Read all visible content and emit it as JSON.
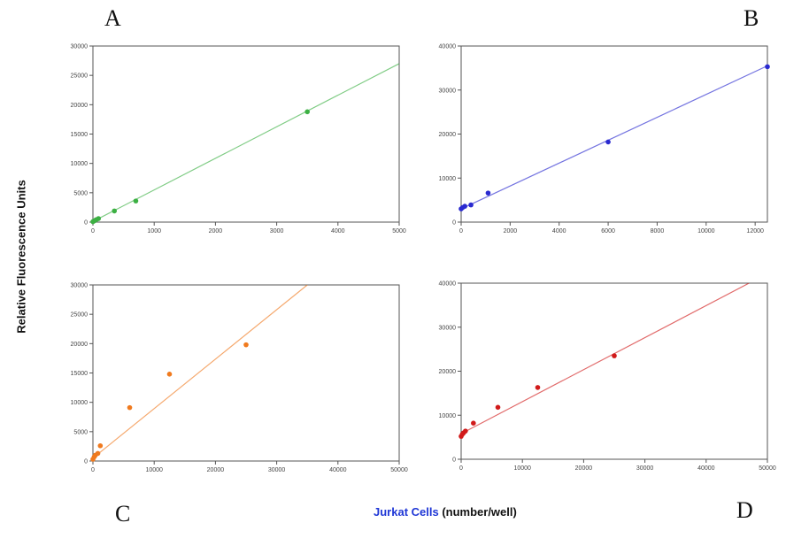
{
  "letters": {
    "a": "A",
    "b": "B",
    "c": "C",
    "d": "D"
  },
  "ylabel": "Relative Fluorescence Units",
  "xlabel": {
    "blue": "Jurkat Cells",
    "rest": " (number/well)"
  },
  "chart_data": [
    {
      "type": "scatter",
      "panel": "A",
      "color": "#3cb043",
      "xlim": [
        0,
        5000
      ],
      "ylim": [
        0,
        30000
      ],
      "xticks": [
        0,
        1000,
        2000,
        3000,
        4000,
        5000
      ],
      "yticks": [
        0,
        5000,
        10000,
        15000,
        20000,
        25000,
        30000
      ],
      "points": [
        [
          0,
          80
        ],
        [
          20,
          200
        ],
        [
          50,
          400
        ],
        [
          90,
          600
        ],
        [
          350,
          1900
        ],
        [
          700,
          3600
        ],
        [
          3500,
          18800
        ]
      ],
      "fit": [
        [
          0,
          100
        ],
        [
          5000,
          27000
        ]
      ]
    },
    {
      "type": "scatter",
      "panel": "B",
      "color": "#2a2ad0",
      "xlim": [
        0,
        12500
      ],
      "ylim": [
        0,
        40000
      ],
      "xticks": [
        0,
        2000,
        4000,
        6000,
        8000,
        10000,
        12000
      ],
      "yticks": [
        0,
        10000,
        20000,
        30000,
        40000
      ],
      "points": [
        [
          0,
          3000
        ],
        [
          60,
          3300
        ],
        [
          150,
          3600
        ],
        [
          400,
          3900
        ],
        [
          1100,
          6600
        ],
        [
          6000,
          18200
        ],
        [
          12500,
          35300
        ]
      ],
      "fit": [
        [
          0,
          3000
        ],
        [
          12500,
          35500
        ]
      ]
    },
    {
      "type": "scatter",
      "panel": "C",
      "color": "#f07a1e",
      "xlim": [
        0,
        50000
      ],
      "ylim": [
        0,
        30000
      ],
      "xticks": [
        0,
        10000,
        20000,
        30000,
        40000,
        50000
      ],
      "yticks": [
        0,
        5000,
        10000,
        15000,
        20000,
        25000,
        30000
      ],
      "points": [
        [
          0,
          300
        ],
        [
          200,
          700
        ],
        [
          400,
          1000
        ],
        [
          800,
          1300
        ],
        [
          1200,
          2600
        ],
        [
          6000,
          9100
        ],
        [
          12500,
          14800
        ],
        [
          25000,
          19800
        ]
      ],
      "fit": [
        [
          0,
          500
        ],
        [
          35000,
          30000
        ]
      ]
    },
    {
      "type": "scatter",
      "panel": "D",
      "color": "#d11a1a",
      "xlim": [
        0,
        50000
      ],
      "ylim": [
        0,
        40000
      ],
      "xticks": [
        0,
        10000,
        20000,
        30000,
        40000,
        50000
      ],
      "yticks": [
        0,
        10000,
        20000,
        30000,
        40000
      ],
      "points": [
        [
          0,
          5200
        ],
        [
          200,
          5700
        ],
        [
          400,
          6000
        ],
        [
          700,
          6400
        ],
        [
          2000,
          8200
        ],
        [
          6000,
          11800
        ],
        [
          12500,
          16300
        ],
        [
          25000,
          23500
        ]
      ],
      "fit": [
        [
          0,
          5800
        ],
        [
          47000,
          40000
        ]
      ]
    }
  ]
}
